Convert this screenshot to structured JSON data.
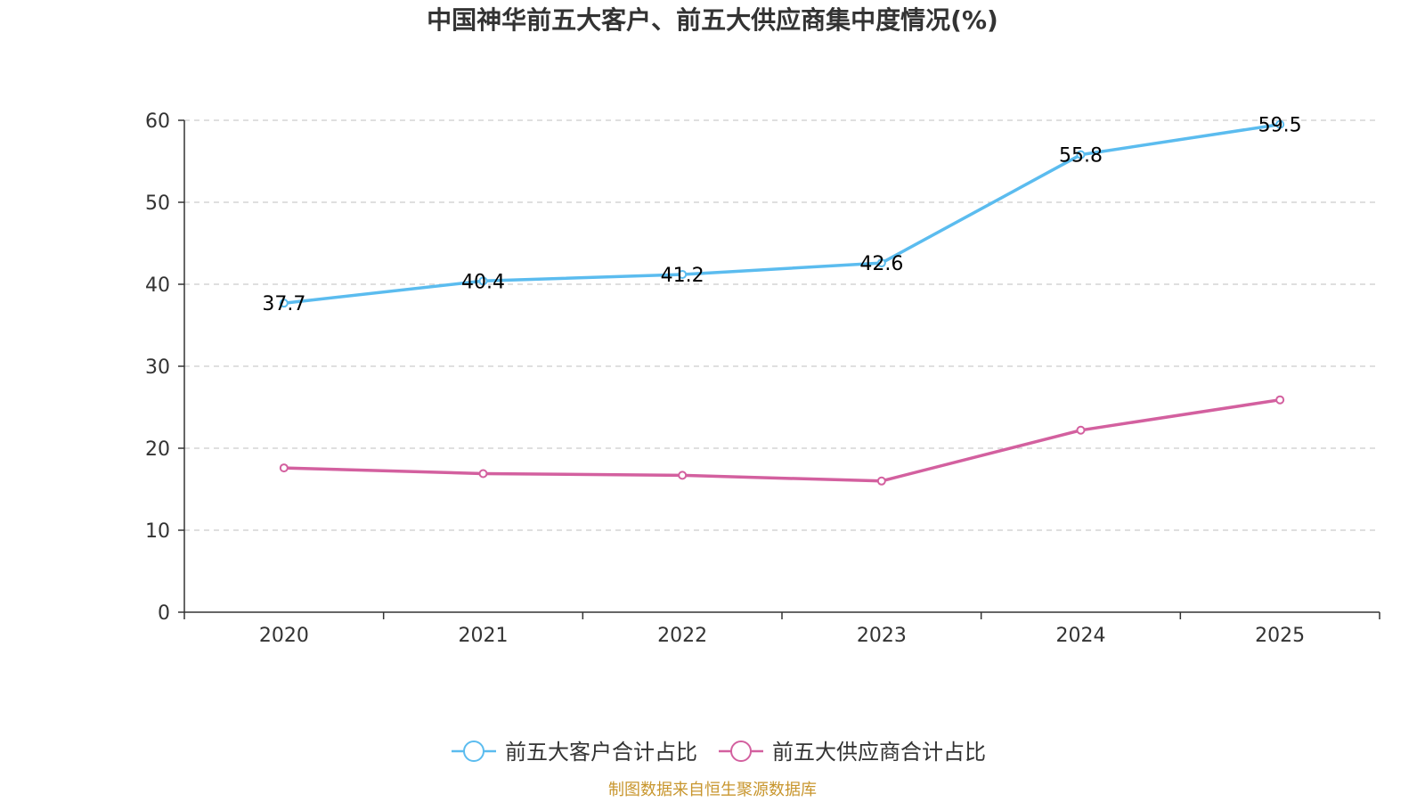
{
  "chart_data": {
    "type": "line",
    "title": "中国神华前五大客户、前五大供应商集中度情况(%)",
    "categories": [
      "2020",
      "2021",
      "2022",
      "2023",
      "2024",
      "2025"
    ],
    "ylim": [
      0,
      60
    ],
    "yticks": [
      0,
      10,
      20,
      30,
      40,
      50,
      60
    ],
    "xlabel": "",
    "ylabel": "",
    "grid": "horizontal dashed",
    "legend_position": "bottom-center",
    "series": [
      {
        "name": "前五大客户合计占比",
        "values": [
          37.7,
          40.4,
          41.2,
          42.6,
          55.8,
          59.5
        ],
        "labels": [
          "37.7",
          "40.4",
          "41.2",
          "42.6",
          "55.8",
          "59.5"
        ],
        "color": "#5bbcef",
        "show_labels": true
      },
      {
        "name": "前五大供应商合计占比",
        "values": [
          17.6,
          16.9,
          16.7,
          16.0,
          22.2,
          25.9
        ],
        "color": "#d3609f",
        "show_labels": false
      }
    ],
    "source": "制图数据来自恒生聚源数据库"
  },
  "colors": {
    "axis": "#333333",
    "grid": "#cccccc",
    "source": "#c8962e"
  }
}
